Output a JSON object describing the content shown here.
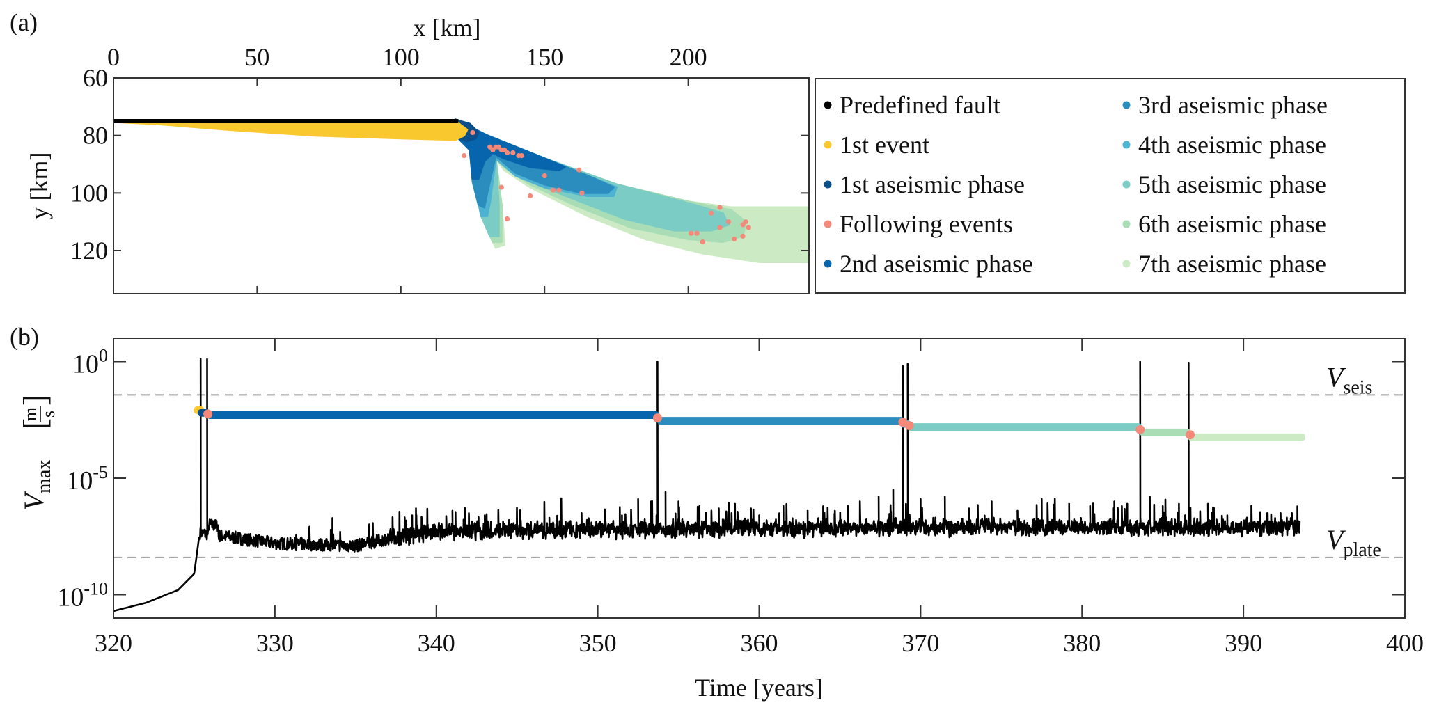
{
  "chart_data": [
    {
      "panel_label": "(a)",
      "type": "scatter",
      "title": "",
      "xlabel": "x [km]",
      "ylabel": "y [km]",
      "x_axis_position": "top",
      "y_axis_reversed": true,
      "xlim": [
        0,
        242
      ],
      "ylim": [
        60,
        135
      ],
      "xticks": [
        0,
        50,
        100,
        150,
        200
      ],
      "yticks": [
        60,
        80,
        100,
        120
      ],
      "xtick_labels": [
        "0",
        "50",
        "100",
        "150",
        "200"
      ],
      "ytick_labels": [
        "60",
        "80",
        "100",
        "120"
      ],
      "grid": false,
      "legend_placement": "right-outside",
      "legend": [
        {
          "label": "Predefined fault",
          "color": "#000000"
        },
        {
          "label": "1st event",
          "color": "#F9C72E"
        },
        {
          "label": "1st aseismic phase",
          "color": "#0B4F8A"
        },
        {
          "label": "Following events",
          "color": "#F4897A"
        },
        {
          "label": "2nd aseismic phase",
          "color": "#0765AD"
        },
        {
          "label": "3rd aseismic phase",
          "color": "#2B8CBE"
        },
        {
          "label": "4th aseismic phase",
          "color": "#4EB3D3"
        },
        {
          "label": "5th aseismic phase",
          "color": "#7BCCC4"
        },
        {
          "label": "6th aseismic phase",
          "color": "#A8DDB5"
        },
        {
          "label": "7th aseismic phase",
          "color": "#CCEBC5"
        }
      ],
      "fault": {
        "x": [
          0,
          120
        ],
        "y": [
          75,
          75
        ],
        "color": "#000000"
      },
      "regions": [
        {
          "name": "7th aseismic phase",
          "color": "#CCEBC5",
          "outline": [
            [
              119,
              74.5
            ],
            [
              130,
              80
            ],
            [
              150,
              88
            ],
            [
              175,
              97
            ],
            [
              200,
              103
            ],
            [
              215,
              105
            ],
            [
              242,
              105
            ],
            [
              242,
              124
            ],
            [
              225,
              124
            ],
            [
              205,
              121
            ],
            [
              185,
              116
            ],
            [
              165,
              108
            ],
            [
              145,
              98
            ],
            [
              136,
              92
            ],
            [
              133,
              88
            ],
            [
              135,
              104
            ],
            [
              136,
              118
            ],
            [
              133,
              119
            ],
            [
              130,
              112
            ],
            [
              126,
              96
            ],
            [
              124,
              84
            ],
            [
              120,
              81
            ]
          ]
        },
        {
          "name": "6th aseismic phase",
          "color": "#A8DDB5",
          "outline": [
            [
              119,
              74.5
            ],
            [
              130,
              80
            ],
            [
              150,
              88
            ],
            [
              175,
              97
            ],
            [
              200,
              103
            ],
            [
              215,
              106
            ],
            [
              220,
              110
            ],
            [
              219,
              115
            ],
            [
              212,
              117
            ],
            [
              200,
              116
            ],
            [
              180,
              112
            ],
            [
              160,
              104
            ],
            [
              145,
              97
            ],
            [
              136,
              91
            ],
            [
              133,
              88
            ],
            [
              135,
              104
            ],
            [
              135,
              117
            ],
            [
              132,
              117
            ],
            [
              129,
              110
            ],
            [
              126,
              96
            ],
            [
              124,
              84
            ],
            [
              120,
              81
            ]
          ]
        },
        {
          "name": "5th aseismic phase",
          "color": "#7BCCC4",
          "outline": [
            [
              119,
              74.5
            ],
            [
              130,
              80
            ],
            [
              150,
              88
            ],
            [
              175,
              97
            ],
            [
              198,
              103
            ],
            [
              212,
              107
            ],
            [
              214,
              111
            ],
            [
              208,
              113
            ],
            [
              195,
              113
            ],
            [
              178,
              109
            ],
            [
              160,
              102
            ],
            [
              145,
              96
            ],
            [
              137,
              90
            ],
            [
              133,
              88
            ],
            [
              134,
              104
            ],
            [
              134,
              115
            ],
            [
              131,
              115
            ],
            [
              128,
              108
            ],
            [
              125,
              95
            ],
            [
              124,
              84
            ],
            [
              120,
              81
            ]
          ]
        },
        {
          "name": "4th aseismic phase",
          "color": "#4EB3D3",
          "outline": [
            [
              119,
              74.5
            ],
            [
              130,
              80
            ],
            [
              150,
              88
            ],
            [
              165,
              94
            ],
            [
              175,
              98
            ],
            [
              174,
              101
            ],
            [
              165,
              101
            ],
            [
              150,
              98
            ],
            [
              140,
              94
            ],
            [
              133,
              88
            ],
            [
              131,
              103
            ],
            [
              130,
              108
            ],
            [
              128,
              108
            ],
            [
              126,
              98
            ],
            [
              124,
              84
            ],
            [
              120,
              81
            ]
          ]
        },
        {
          "name": "3rd aseismic phase",
          "color": "#2B8CBE",
          "outline": [
            [
              119,
              74.5
            ],
            [
              130,
              80
            ],
            [
              150,
              88
            ],
            [
              165,
              94
            ],
            [
              174,
              98
            ],
            [
              172,
              100
            ],
            [
              163,
              100
            ],
            [
              150,
              97
            ],
            [
              140,
              93
            ],
            [
              133,
              87
            ],
            [
              130,
              100
            ],
            [
              129,
              105
            ],
            [
              127,
              104
            ],
            [
              125,
              96
            ],
            [
              124,
              84
            ],
            [
              120,
              81
            ]
          ]
        },
        {
          "name": "2nd aseismic phase",
          "color": "#0765AD",
          "outline": [
            [
              119,
              74.5
            ],
            [
              130,
              80
            ],
            [
              150,
              88
            ],
            [
              157,
              91
            ],
            [
              155,
              92
            ],
            [
              145,
              91
            ],
            [
              136,
              88
            ],
            [
              132,
              86
            ],
            [
              129,
              89
            ],
            [
              127,
              95
            ],
            [
              125,
              95
            ],
            [
              124,
              85
            ],
            [
              120,
              81
            ]
          ]
        },
        {
          "name": "1st aseismic phase",
          "color": "#0B4F8A",
          "outline": [
            [
              119,
              74.5
            ],
            [
              124,
              76
            ],
            [
              127,
              79
            ],
            [
              126,
              81
            ],
            [
              123,
              82
            ],
            [
              120,
              81
            ]
          ]
        },
        {
          "name": "1st event",
          "color": "#F9C72E",
          "outline": [
            [
              0,
              75
            ],
            [
              119,
              75
            ],
            [
              123,
              78
            ],
            [
              122,
              80
            ],
            [
              119,
              81.5
            ],
            [
              100,
              81
            ],
            [
              70,
              80
            ],
            [
              40,
              78
            ],
            [
              15,
              76
            ],
            [
              0,
              75.3
            ]
          ]
        }
      ],
      "following_events": {
        "color": "#F4897A",
        "x": [
          125,
          122,
          131,
          132,
          133,
          134,
          135,
          136,
          137,
          139,
          141,
          142,
          135,
          137,
          150,
          162,
          145,
          153,
          155,
          163,
          211,
          208,
          214,
          211,
          201,
          203,
          205,
          220,
          219,
          221,
          219,
          216
        ],
        "y": [
          79,
          87,
          84,
          85,
          84,
          84,
          85,
          85,
          86,
          86,
          87,
          87,
          98,
          109,
          94,
          92,
          101,
          99,
          99,
          100,
          105,
          107,
          110,
          112,
          114,
          114,
          117,
          110,
          111,
          112,
          115,
          116
        ]
      }
    },
    {
      "panel_label": "(b)",
      "type": "line",
      "title": "",
      "xlabel": "Time [years]",
      "ylabel": "V_max [m/s]",
      "ylabel_parts": {
        "main": "V",
        "sub": "max",
        "unit_num": "m",
        "unit_den": "s"
      },
      "yscale": "log",
      "xlim": [
        320,
        400
      ],
      "ylim_log10": [
        -11,
        1
      ],
      "xticks": [
        320,
        330,
        340,
        350,
        360,
        370,
        380,
        390,
        400
      ],
      "xtick_labels": [
        "320",
        "330",
        "340",
        "350",
        "360",
        "370",
        "380",
        "390",
        "400"
      ],
      "yticks_log10": [
        0,
        -5,
        -10
      ],
      "ytick_labels": [
        {
          "base": "10",
          "exp": "0"
        },
        {
          "base": "10",
          "exp": "-5"
        },
        {
          "base": "10",
          "exp": "-10"
        }
      ],
      "grid": false,
      "reference_lines": [
        {
          "name": "V_seis",
          "label_main": "V",
          "label_sub": "seis",
          "log10_value": -1.43,
          "style": "dashed",
          "color": "#999999"
        },
        {
          "name": "V_plate",
          "label_main": "V",
          "label_sub": "plate",
          "log10_value": -8.4,
          "style": "dashed",
          "color": "#999999"
        }
      ],
      "vmax_series": {
        "name": "V_max",
        "color": "#000000",
        "t_end": 393.5,
        "interseismic_start": {
          "t": [
            320,
            322,
            324,
            325,
            325.35
          ],
          "log10_v": [
            -10.7,
            -10.35,
            -9.8,
            -9.1,
            -7.3
          ]
        },
        "main_spikes": [
          {
            "t": 325.4,
            "log10_peak": 0.1
          },
          {
            "t": 325.8,
            "log10_peak": 0.1
          },
          {
            "t": 353.7,
            "log10_peak": 0.0
          },
          {
            "t": 368.9,
            "log10_peak": -0.2
          },
          {
            "t": 369.2,
            "log10_peak": -0.1
          },
          {
            "t": 383.6,
            "log10_peak": 0.0
          },
          {
            "t": 386.6,
            "log10_peak": -0.05
          }
        ],
        "baseline": {
          "t": [
            325.9,
            330,
            335,
            337,
            340,
            350,
            360,
            370,
            380,
            393.5
          ],
          "log10_v": [
            -7.4,
            -7.8,
            -7.9,
            -7.6,
            -7.3,
            -7.2,
            -7.15,
            -7.1,
            -7.1,
            -7.1
          ]
        },
        "minor_spikes": {
          "t": [
            338.5,
            341,
            343,
            344.5,
            347,
            349,
            351.5,
            352.5,
            353.3,
            354.2,
            355,
            356.3,
            357.5,
            358.5,
            360,
            361.5,
            363,
            364.7,
            365.5,
            367.4,
            368.3,
            370,
            371.5,
            373,
            374.4,
            376,
            377.5,
            379.2,
            380.5,
            382,
            382.8,
            384.2,
            385,
            386,
            387.8,
            389,
            390.5,
            391.5,
            392.3,
            393
          ],
          "log10_peak": [
            -6.6,
            -6.4,
            -6.6,
            -6.8,
            -6.7,
            -6.5,
            -6.6,
            -5.9,
            -6.0,
            -5.6,
            -6.0,
            -6.2,
            -6.3,
            -6.1,
            -6.6,
            -6.2,
            -6.4,
            -6.8,
            -6.2,
            -5.8,
            -5.5,
            -5.9,
            -5.8,
            -6.3,
            -6.0,
            -6.4,
            -5.9,
            -6.1,
            -6.2,
            -6.0,
            -6.1,
            -5.8,
            -6.2,
            -6.1,
            -6.1,
            -6.6,
            -6.2,
            -6.5,
            -6.5,
            -6.5
          ]
        }
      },
      "phase_markers": [
        {
          "name": "1st event",
          "color": "#F9C72E",
          "t_start": 325.2,
          "t_end": 325.4,
          "log10_v": -2.09
        },
        {
          "name": "1st aseismic phase",
          "color": "#0B4F8A",
          "t_start": 325.45,
          "t_end": 325.75,
          "log10_v": -2.2
        },
        {
          "name": "2nd aseismic phase",
          "color": "#0765AD",
          "t_start": 326.0,
          "t_end": 353.6,
          "log10_v": -2.3
        },
        {
          "name": "3rd aseismic phase",
          "color": "#2B8CBE",
          "t_start": 353.9,
          "t_end": 368.8,
          "log10_v": -2.54
        },
        {
          "name": "4th aseismic phase",
          "color": "#4EB3D3",
          "t_start": 368.95,
          "t_end": 369.15,
          "log10_v": -2.67
        },
        {
          "name": "5th aseismic phase",
          "color": "#7BCCC4",
          "t_start": 369.4,
          "t_end": 383.5,
          "log10_v": -2.81
        },
        {
          "name": "6th aseismic phase",
          "color": "#A8DDB5",
          "t_start": 383.8,
          "t_end": 386.5,
          "log10_v": -3.04
        },
        {
          "name": "7th aseismic phase",
          "color": "#CCEBC5",
          "t_start": 386.8,
          "t_end": 393.6,
          "log10_v": -3.25
        }
      ],
      "following_event_markers": {
        "color": "#F4897A",
        "t": [
          325.85,
          353.7,
          368.9,
          369.3,
          383.6,
          386.7
        ],
        "log10_v": [
          -2.25,
          -2.42,
          -2.6,
          -2.75,
          -2.92,
          -3.14
        ]
      }
    }
  ]
}
